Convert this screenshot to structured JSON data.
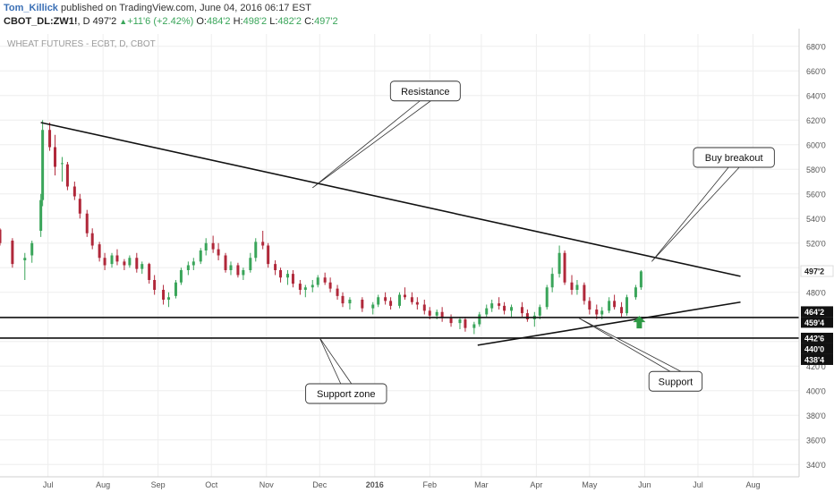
{
  "header": {
    "author": "Tom_Killick",
    "published_text": "published on TradingView.com, June 04, 2016 06:17 EST",
    "symbol": "CBOT_DL:ZW1!",
    "interval": "D",
    "last": "497'2",
    "change": "+11'6 (+2.42%)",
    "o_label": "O:",
    "o_value": "484'2",
    "h_label": "H:",
    "h_value": "498'2",
    "l_label": "L:",
    "l_value": "482'2",
    "c_label": "C:",
    "c_value": "497'2"
  },
  "colors": {
    "up": "#3aa55a",
    "down": "#b0283a",
    "trendline": "#111111",
    "price_label_bg": "#111111",
    "arrow": "#2e9a45",
    "grid": "#eeeeee"
  },
  "chart_data": {
    "type": "candlestick",
    "title": "WHEAT FUTURES - ECBT, D, CBOT",
    "ylim": [
      330,
      690
    ],
    "y_ticks": [
      "340'0",
      "360'0",
      "380'0",
      "400'0",
      "420'0",
      "440'0",
      "460'0",
      "480'0",
      "500'0",
      "520'0",
      "540'0",
      "560'0",
      "580'0",
      "600'0",
      "620'0",
      "640'0",
      "660'0",
      "680'0"
    ],
    "x_ticks": [
      "Jul",
      "Aug",
      "Sep",
      "Oct",
      "Nov",
      "Dec",
      "2016",
      "Feb",
      "Mar",
      "Apr",
      "May",
      "Jun",
      "Jul",
      "Aug"
    ],
    "x_range": [
      "2015-06-08",
      "2016-08-31"
    ],
    "price_labels": [
      {
        "text": "497'2",
        "style": "plain",
        "value": 497.25
      },
      {
        "text": "464'2",
        "style": "dark",
        "value": 464.25
      },
      {
        "text": "459'4",
        "style": "dark",
        "value": 459.5
      },
      {
        "text": "442'6",
        "style": "dark",
        "value": 442.75
      },
      {
        "text": "440'0",
        "style": "dark",
        "value": 440.0
      },
      {
        "text": "438'4",
        "style": "dark",
        "value": 438.5
      }
    ],
    "candles": [
      [
        "2015-06-08",
        531,
        532,
        518,
        520
      ],
      [
        "2015-06-15",
        522,
        524,
        500,
        503
      ],
      [
        "2015-06-22",
        506,
        512,
        490,
        508
      ],
      [
        "2015-06-26",
        510,
        522,
        504,
        520
      ],
      [
        "2015-07-01",
        530,
        560,
        525,
        555
      ],
      [
        "2015-07-02",
        555,
        620,
        550,
        612
      ],
      [
        "2015-07-06",
        612,
        618,
        595,
        598
      ],
      [
        "2015-07-09",
        598,
        608,
        575,
        582
      ],
      [
        "2015-07-13",
        585,
        590,
        570,
        585
      ],
      [
        "2015-07-16",
        584,
        586,
        563,
        566
      ],
      [
        "2015-07-20",
        566,
        570,
        555,
        558
      ],
      [
        "2015-07-23",
        556,
        560,
        540,
        544
      ],
      [
        "2015-07-27",
        544,
        547,
        525,
        528
      ],
      [
        "2015-07-30",
        528,
        532,
        515,
        518
      ],
      [
        "2015-08-03",
        519,
        521,
        505,
        508
      ],
      [
        "2015-08-06",
        508,
        512,
        498,
        502
      ],
      [
        "2015-08-10",
        503,
        512,
        500,
        510
      ],
      [
        "2015-08-13",
        510,
        515,
        502,
        505
      ],
      [
        "2015-08-17",
        505,
        507,
        498,
        502
      ],
      [
        "2015-08-20",
        502,
        510,
        500,
        508
      ],
      [
        "2015-08-24",
        508,
        512,
        496,
        499
      ],
      [
        "2015-08-27",
        499,
        505,
        495,
        503
      ],
      [
        "2015-08-31",
        503,
        504,
        487,
        490
      ],
      [
        "2015-09-03",
        490,
        494,
        478,
        482
      ],
      [
        "2015-09-08",
        482,
        486,
        470,
        474
      ],
      [
        "2015-09-11",
        474,
        480,
        468,
        476
      ],
      [
        "2015-09-15",
        477,
        490,
        475,
        488
      ],
      [
        "2015-09-18",
        488,
        500,
        486,
        498
      ],
      [
        "2015-09-22",
        498,
        505,
        494,
        502
      ],
      [
        "2015-09-25",
        502,
        508,
        498,
        505
      ],
      [
        "2015-09-29",
        505,
        516,
        503,
        514
      ],
      [
        "2015-10-02",
        514,
        524,
        510,
        520
      ],
      [
        "2015-10-06",
        520,
        526,
        512,
        515
      ],
      [
        "2015-10-09",
        515,
        520,
        506,
        510
      ],
      [
        "2015-10-13",
        510,
        512,
        496,
        498
      ],
      [
        "2015-10-16",
        498,
        505,
        494,
        502
      ],
      [
        "2015-10-20",
        502,
        504,
        492,
        494
      ],
      [
        "2015-10-23",
        494,
        500,
        490,
        498
      ],
      [
        "2015-10-27",
        498,
        512,
        496,
        508
      ],
      [
        "2015-10-30",
        508,
        524,
        505,
        521
      ],
      [
        "2015-11-03",
        521,
        530,
        515,
        518
      ],
      [
        "2015-11-06",
        518,
        520,
        500,
        503
      ],
      [
        "2015-11-10",
        503,
        506,
        494,
        498
      ],
      [
        "2015-11-13",
        498,
        500,
        488,
        492
      ],
      [
        "2015-11-17",
        492,
        498,
        486,
        495
      ],
      [
        "2015-11-20",
        495,
        498,
        484,
        487
      ],
      [
        "2015-11-24",
        487,
        490,
        478,
        482
      ],
      [
        "2015-11-27",
        482,
        486,
        476,
        484
      ],
      [
        "2015-12-01",
        484,
        490,
        480,
        486
      ],
      [
        "2015-12-04",
        486,
        494,
        484,
        492
      ],
      [
        "2015-12-08",
        492,
        496,
        486,
        488
      ],
      [
        "2015-12-11",
        488,
        492,
        480,
        483
      ],
      [
        "2015-12-15",
        483,
        486,
        474,
        477
      ],
      [
        "2015-12-18",
        477,
        480,
        468,
        471
      ],
      [
        "2015-12-22",
        471,
        476,
        466,
        474
      ],
      [
        "2015-12-29",
        474,
        476,
        464,
        467
      ],
      [
        "2016-01-04",
        467,
        472,
        462,
        470
      ],
      [
        "2016-01-07",
        470,
        478,
        468,
        476
      ],
      [
        "2016-01-11",
        476,
        480,
        470,
        473
      ],
      [
        "2016-01-14",
        473,
        476,
        466,
        469
      ],
      [
        "2016-01-19",
        469,
        480,
        467,
        478
      ],
      [
        "2016-01-22",
        478,
        484,
        474,
        476
      ],
      [
        "2016-01-26",
        476,
        480,
        470,
        472
      ],
      [
        "2016-01-29",
        472,
        476,
        466,
        470
      ],
      [
        "2016-02-02",
        470,
        474,
        462,
        465
      ],
      [
        "2016-02-05",
        465,
        468,
        458,
        461
      ],
      [
        "2016-02-09",
        461,
        466,
        458,
        464
      ],
      [
        "2016-02-12",
        464,
        468,
        456,
        459
      ],
      [
        "2016-02-17",
        459,
        462,
        452,
        455
      ],
      [
        "2016-02-22",
        455,
        460,
        450,
        458
      ],
      [
        "2016-02-25",
        458,
        460,
        448,
        451
      ],
      [
        "2016-03-01",
        451,
        456,
        446,
        454
      ],
      [
        "2016-03-04",
        454,
        464,
        452,
        462
      ],
      [
        "2016-03-08",
        462,
        470,
        460,
        467
      ],
      [
        "2016-03-11",
        467,
        474,
        464,
        471
      ],
      [
        "2016-03-15",
        471,
        476,
        466,
        469
      ],
      [
        "2016-03-18",
        469,
        472,
        462,
        465
      ],
      [
        "2016-03-22",
        465,
        470,
        460,
        468
      ],
      [
        "2016-03-28",
        468,
        472,
        460,
        463
      ],
      [
        "2016-03-31",
        463,
        466,
        456,
        458
      ],
      [
        "2016-04-04",
        458,
        464,
        452,
        461
      ],
      [
        "2016-04-07",
        461,
        470,
        458,
        468
      ],
      [
        "2016-04-11",
        468,
        486,
        466,
        484
      ],
      [
        "2016-04-14",
        484,
        500,
        480,
        495
      ],
      [
        "2016-04-18",
        495,
        518,
        492,
        512
      ],
      [
        "2016-04-21",
        512,
        514,
        486,
        488
      ],
      [
        "2016-04-25",
        488,
        494,
        478,
        482
      ],
      [
        "2016-04-28",
        482,
        490,
        478,
        486
      ],
      [
        "2016-05-02",
        486,
        488,
        470,
        473
      ],
      [
        "2016-05-05",
        473,
        476,
        462,
        466
      ],
      [
        "2016-05-09",
        466,
        470,
        458,
        462
      ],
      [
        "2016-05-12",
        462,
        468,
        458,
        465
      ],
      [
        "2016-05-16",
        465,
        476,
        463,
        473
      ],
      [
        "2016-05-19",
        473,
        478,
        466,
        468
      ],
      [
        "2016-05-23",
        468,
        472,
        460,
        463
      ],
      [
        "2016-05-26",
        463,
        478,
        461,
        476
      ],
      [
        "2016-05-31",
        476,
        486,
        474,
        484
      ],
      [
        "2016-06-03",
        484,
        498,
        482,
        497
      ]
    ],
    "drawings": [
      {
        "name": "resistance-line",
        "kind": "line",
        "from": [
          "2015-07-01",
          618
        ],
        "to": [
          "2016-07-29",
          493
        ]
      },
      {
        "name": "support-trendline",
        "kind": "line",
        "from": [
          "2016-03-03",
          437
        ],
        "to": [
          "2016-07-29",
          472
        ]
      },
      {
        "name": "support-zone-top",
        "kind": "line",
        "from": [
          "2015-06-08",
          459.5
        ],
        "to": [
          "2016-08-31",
          459.5
        ]
      },
      {
        "name": "support-zone-bottom",
        "kind": "line",
        "from": [
          "2015-06-08",
          442.75
        ],
        "to": [
          "2016-08-31",
          442.75
        ]
      }
    ],
    "annotations": [
      {
        "text": "Resistance",
        "anchor": [
          "2015-12-01",
          565
        ],
        "box": [
          0.51,
          0.185
        ]
      },
      {
        "text": "Buy breakout",
        "anchor": [
          "2016-06-09",
          505
        ],
        "box": [
          0.88,
          0.32
        ]
      },
      {
        "text": "Support zone",
        "anchor": [
          "2015-12-05",
          443
        ],
        "box": [
          0.415,
          0.8
        ]
      },
      {
        "text": "Support",
        "anchor": [
          "2016-04-29",
          459
        ],
        "box": [
          0.81,
          0.775
        ]
      }
    ],
    "buy_arrow": {
      "date": "2016-06-02",
      "value": 455
    }
  }
}
